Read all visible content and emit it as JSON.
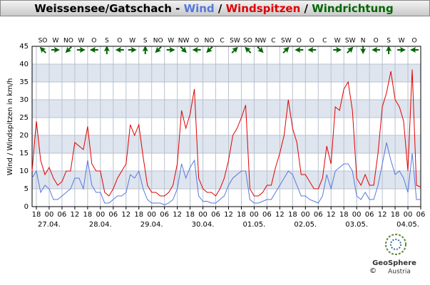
{
  "chart_data": {
    "type": "line",
    "title": "Weissensee/Gatschach",
    "title_separators": [
      " - ",
      " / ",
      " / "
    ],
    "direction_name": "Windrichtung",
    "direction_color": "#006600",
    "ylabel": "Wind / Windspitzen in km/h",
    "x": [
      16,
      18,
      20,
      22,
      24,
      26,
      28,
      30,
      32,
      34,
      36,
      38,
      40,
      42,
      44,
      46,
      48,
      50,
      52,
      54,
      56,
      58,
      60,
      62,
      64,
      66,
      68,
      70,
      72,
      74,
      76,
      78,
      80,
      82,
      84,
      86,
      88,
      90,
      92,
      94,
      96,
      98,
      100,
      102,
      104,
      106,
      108,
      110,
      112,
      114,
      116,
      118,
      120,
      122,
      124,
      126,
      128,
      130,
      132,
      134,
      136,
      138,
      140,
      142,
      144,
      146,
      148,
      150,
      152,
      154,
      156,
      158,
      160,
      162,
      164,
      166,
      168,
      170,
      172,
      174,
      176,
      178,
      180,
      182,
      184,
      186,
      188,
      190,
      192,
      194,
      196,
      198
    ],
    "series": [
      {
        "name": "Wind",
        "color": "#5577dd",
        "values": [
          8,
          10,
          4,
          6,
          5,
          2,
          2,
          3,
          4,
          5,
          8,
          8,
          5,
          13,
          6,
          4,
          4,
          1,
          1,
          2,
          3,
          3,
          4,
          9,
          8,
          10,
          5,
          2,
          1,
          1,
          1,
          0.5,
          1,
          2,
          5,
          12,
          8,
          11,
          13,
          3,
          1.5,
          1.5,
          1,
          1,
          2,
          3,
          6,
          8,
          9,
          10,
          10,
          2,
          1,
          1,
          1.5,
          2,
          2,
          4,
          6,
          8,
          10,
          9,
          6,
          3,
          3,
          2,
          1.5,
          1,
          3,
          9,
          5,
          10,
          11,
          12,
          12,
          10,
          3,
          2,
          4,
          2,
          2,
          6,
          12,
          18,
          13,
          9,
          10,
          8,
          4,
          15,
          2,
          2
        ]
      },
      {
        "name": "Windspitzen",
        "color": "#e00000",
        "values": [
          10,
          24,
          13,
          9,
          11,
          8,
          6,
          7,
          10,
          10,
          18,
          17,
          16,
          22.5,
          12,
          10,
          10,
          4,
          3,
          5,
          8,
          10,
          12,
          23,
          20,
          23,
          14,
          6,
          4,
          4,
          3,
          3,
          4,
          6,
          12,
          27,
          22,
          26,
          33,
          8,
          5,
          4,
          4,
          3,
          5,
          8,
          13,
          20,
          22,
          25,
          28.5,
          5,
          3,
          3,
          4,
          6,
          6,
          11,
          15,
          20,
          30,
          22,
          18,
          9,
          9,
          7,
          5,
          5,
          8,
          17,
          12,
          28,
          27,
          33,
          35,
          27,
          8,
          6,
          9,
          6,
          6,
          15,
          28,
          32,
          38,
          30,
          28,
          24,
          10,
          38.5,
          6,
          5.5
        ]
      }
    ],
    "direction": {
      "x": [
        21,
        27,
        33,
        39,
        45,
        51,
        57,
        63,
        69,
        75,
        81,
        87,
        93,
        99,
        105,
        111,
        117,
        123,
        129,
        135,
        141,
        147,
        153,
        159,
        165,
        171,
        177,
        183,
        189,
        195
      ],
      "labels": [
        "SO",
        "W",
        "NO",
        "W",
        "O",
        "S",
        "O",
        "W",
        "S",
        "NO",
        "W",
        "NW",
        "O",
        "NO",
        "C",
        "SW",
        "SO",
        "NW",
        "C",
        "SW",
        "O",
        "O",
        "C",
        "W",
        "SW",
        "N",
        "O",
        "S",
        "W",
        "O"
      ]
    },
    "xlim": [
      16,
      198
    ],
    "xticks": [
      {
        "value": 18,
        "label": "18"
      },
      {
        "value": 24,
        "label": "00"
      },
      {
        "value": 30,
        "label": "06"
      },
      {
        "value": 36,
        "label": "12"
      },
      {
        "value": 42,
        "label": "18"
      },
      {
        "value": 48,
        "label": "00"
      },
      {
        "value": 54,
        "label": "06"
      },
      {
        "value": 60,
        "label": "12"
      },
      {
        "value": 66,
        "label": "18"
      },
      {
        "value": 72,
        "label": "00"
      },
      {
        "value": 78,
        "label": "06"
      },
      {
        "value": 84,
        "label": "12"
      },
      {
        "value": 90,
        "label": "18"
      },
      {
        "value": 96,
        "label": "00"
      },
      {
        "value": 102,
        "label": "06"
      },
      {
        "value": 108,
        "label": "12"
      },
      {
        "value": 114,
        "label": "18"
      },
      {
        "value": 120,
        "label": "00"
      },
      {
        "value": 126,
        "label": "06"
      },
      {
        "value": 132,
        "label": "12"
      },
      {
        "value": 138,
        "label": "18"
      },
      {
        "value": 144,
        "label": "00"
      },
      {
        "value": 150,
        "label": "06"
      },
      {
        "value": 156,
        "label": "12"
      },
      {
        "value": 162,
        "label": "18"
      },
      {
        "value": 168,
        "label": "00"
      },
      {
        "value": 174,
        "label": "06"
      },
      {
        "value": 180,
        "label": "12"
      },
      {
        "value": 186,
        "label": "18"
      },
      {
        "value": 192,
        "label": "00"
      },
      {
        "value": 198,
        "label": "06"
      }
    ],
    "date_labels": [
      {
        "value": 24,
        "label": "27.04."
      },
      {
        "value": 48,
        "label": "28.04."
      },
      {
        "value": 72,
        "label": "29.04."
      },
      {
        "value": 96,
        "label": "30.04."
      },
      {
        "value": 120,
        "label": "01.05."
      },
      {
        "value": 144,
        "label": "02.05."
      },
      {
        "value": 168,
        "label": "03.05."
      },
      {
        "value": 192,
        "label": "04.05."
      }
    ],
    "ylim": [
      0,
      45
    ],
    "yticks": [
      0,
      5,
      10,
      15,
      20,
      25,
      30,
      35,
      40,
      45
    ],
    "grid": true,
    "logo": {
      "name": "GeoSphere",
      "sub": "Austria",
      "copyright": "©"
    }
  }
}
